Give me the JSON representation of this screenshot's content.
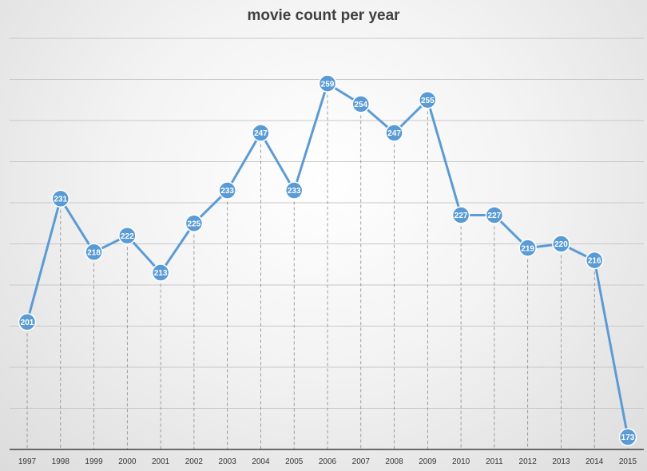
{
  "chart_data": {
    "type": "line",
    "title": "movie count per year",
    "xlabel": "",
    "ylabel": "",
    "categories": [
      "1997",
      "1998",
      "1999",
      "2000",
      "2001",
      "2002",
      "2003",
      "2004",
      "2005",
      "2006",
      "2007",
      "2008",
      "2009",
      "2010",
      "2011",
      "2012",
      "2013",
      "2014",
      "2015"
    ],
    "series": [
      {
        "values": [
          201,
          231,
          218,
          222,
          213,
          225,
          233,
          247,
          233,
          259,
          254,
          247,
          255,
          227,
          227,
          219,
          220,
          216,
          173
        ]
      }
    ],
    "ylim": [
      170,
      270
    ],
    "gridlines": true,
    "data_labels": true,
    "legend": "none",
    "colors": {
      "line": "#5b9bd5",
      "marker": "#5b9bd5",
      "grid": "#c8c8c8",
      "axis": "#404040",
      "drop_line": "#888888"
    }
  }
}
